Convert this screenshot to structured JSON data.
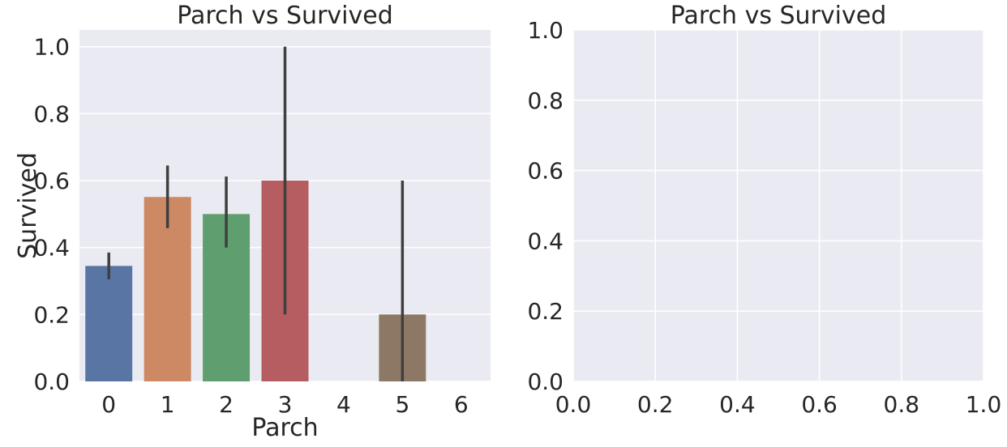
{
  "chart_data": [
    {
      "type": "bar",
      "title": "Parch vs Survived",
      "xlabel": "Parch",
      "ylabel": "Survived",
      "categories": [
        "0",
        "1",
        "2",
        "3",
        "4",
        "5",
        "6"
      ],
      "values": [
        0.345,
        0.551,
        0.5,
        0.6,
        0.0,
        0.2,
        0.0
      ],
      "ci_low": [
        0.305,
        0.458,
        0.4,
        0.2,
        0.0,
        0.0,
        0.0
      ],
      "ci_high": [
        0.385,
        0.645,
        0.612,
        1.0,
        0.0,
        0.6,
        0.0
      ],
      "colors": [
        "#5875a4",
        "#cc8963",
        "#5f9e6e",
        "#b55d60",
        "#857aab",
        "#8d7866",
        "#d095bf"
      ],
      "ylim": [
        0,
        1.05
      ],
      "yticks": [
        "0.0",
        "0.2",
        "0.4",
        "0.6",
        "0.8",
        "1.0"
      ],
      "grid": true
    },
    {
      "type": "scatter",
      "title": "Parch vs Survived",
      "xlabel": "",
      "ylabel": "",
      "series": [],
      "xlim": [
        0,
        1
      ],
      "ylim": [
        0,
        1
      ],
      "xticks": [
        "0.0",
        "0.2",
        "0.4",
        "0.6",
        "0.8",
        "1.0"
      ],
      "yticks": [
        "0.0",
        "0.2",
        "0.4",
        "0.6",
        "0.8",
        "1.0"
      ],
      "grid": true
    }
  ],
  "style": {
    "plot_background": "#eaeaf2",
    "grid_color": "#ffffff",
    "errorbar_color": "#3f3f3f",
    "text_color": "#262626"
  }
}
